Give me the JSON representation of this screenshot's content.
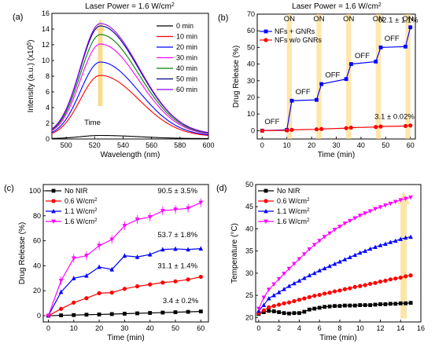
{
  "chart_data": [
    {
      "panel": "(a)",
      "type": "line",
      "title": "Laser Power = 1.6 W/cm²",
      "xlabel": "Wavelength (nm)",
      "ylabel": "Intensity (a.u.) (x10⁵)",
      "xlim": [
        490,
        600
      ],
      "ylim": [
        0,
        16
      ],
      "xticks": [
        500,
        520,
        540,
        560,
        580,
        600
      ],
      "yticks": [
        0,
        2,
        4,
        6,
        8,
        10,
        12,
        14,
        16
      ],
      "peak_x": 524,
      "series": [
        {
          "name": "0 min",
          "color": "#000000",
          "peak": 0.45,
          "floor": 0.05
        },
        {
          "name": "10 min",
          "color": "#ff0000",
          "peak": 8.1,
          "floor": 0.3
        },
        {
          "name": "20 min",
          "color": "#0000ff",
          "peak": 9.8,
          "floor": 0.35
        },
        {
          "name": "30 min",
          "color": "#ff00ff",
          "peak": 12.1,
          "floor": 0.45
        },
        {
          "name": "40 min",
          "color": "#008000",
          "peak": 13.3,
          "floor": 0.5
        },
        {
          "name": "50 min",
          "color": "#000080",
          "peak": 14.4,
          "floor": 0.55
        },
        {
          "name": "60 min",
          "color": "#8b00ff",
          "peak": 14.7,
          "floor": 0.55
        }
      ],
      "arrow_label": "Time"
    },
    {
      "panel": "(b)",
      "type": "line",
      "title": "Laser Power = 1.6 W/cm²",
      "xlabel": "Time (min)",
      "ylabel": "Drug Release (%)",
      "xlim": [
        -2,
        62
      ],
      "ylim": [
        -5,
        70
      ],
      "xticks": [
        0,
        10,
        20,
        30,
        40,
        50,
        60
      ],
      "yticks": [
        0,
        10,
        20,
        30,
        40,
        50,
        60,
        70
      ],
      "on_intervals": [
        [
          10,
          12
        ],
        [
          22,
          24
        ],
        [
          34,
          36
        ],
        [
          46,
          48
        ],
        [
          58,
          60
        ]
      ],
      "on_label": "ON",
      "off_label": "OFF",
      "off_positions": [
        {
          "x": 1,
          "y": 4
        },
        {
          "x": 13.5,
          "y": 22
        },
        {
          "x": 25.5,
          "y": 32
        },
        {
          "x": 37.5,
          "y": 43.5
        },
        {
          "x": 49.5,
          "y": 54
        }
      ],
      "series": [
        {
          "name": "NFs + GNRs",
          "color": "#0000ff",
          "x": [
            0,
            10,
            12,
            22,
            24,
            34,
            36,
            46,
            48,
            58,
            60
          ],
          "y": [
            0,
            0.5,
            18,
            18.5,
            28,
            31,
            40,
            41.5,
            50,
            50.5,
            62.1
          ]
        },
        {
          "name": "NFs w/o GNRs",
          "color": "#ff0000",
          "x": [
            0,
            10,
            12,
            22,
            24,
            34,
            36,
            46,
            48,
            58,
            60
          ],
          "y": [
            0,
            0.2,
            0.5,
            0.8,
            1.0,
            1.5,
            1.8,
            2.2,
            2.5,
            2.8,
            3.1
          ]
        }
      ],
      "annotations": [
        {
          "text": "62.1 ± 1.1%",
          "x": 47,
          "y": 65
        },
        {
          "text": "3.1 ± 0.02%",
          "x": 45.5,
          "y": 7
        }
      ]
    },
    {
      "panel": "(c)",
      "type": "line",
      "xlabel": "Time (min)",
      "ylabel": "Drug Release (%)",
      "xlim": [
        -2,
        63
      ],
      "ylim": [
        -5,
        105
      ],
      "xticks": [
        0,
        10,
        20,
        30,
        40,
        50,
        60
      ],
      "yticks": [
        0,
        20,
        40,
        60,
        80,
        100
      ],
      "x": [
        0,
        5,
        10,
        15,
        20,
        25,
        30,
        35,
        40,
        45,
        50,
        55,
        60
      ],
      "series": [
        {
          "name": "No NIR",
          "color": "#000000",
          "marker": "square",
          "y": [
            0,
            0.3,
            0.5,
            0.8,
            1.0,
            1.3,
            1.6,
            1.9,
            2.2,
            2.5,
            2.8,
            3.1,
            3.4
          ]
        },
        {
          "name": "0.6 W/cm²",
          "color": "#ff0000",
          "marker": "circle",
          "y": [
            0,
            5.5,
            10.5,
            14,
            18,
            18.5,
            21.5,
            23.5,
            25,
            26.5,
            27.5,
            29,
            31.1
          ]
        },
        {
          "name": "1.1 W/cm²",
          "color": "#0000ff",
          "marker": "triangle",
          "y": [
            0,
            19,
            30,
            32,
            39,
            37,
            48,
            47,
            49,
            53,
            53.5,
            53,
            53.7
          ]
        },
        {
          "name": "1.6 W/cm²",
          "color": "#ff00ff",
          "marker": "triangle-down",
          "y": [
            0,
            28,
            46,
            48,
            56,
            61,
            72,
            77,
            79,
            84,
            85,
            86,
            90.5
          ]
        }
      ],
      "annotations": [
        {
          "text": "90.5 ± 3.5%",
          "x": 43,
          "y": 98
        },
        {
          "text": "53.7 ± 1.8%",
          "x": 43,
          "y": 63
        },
        {
          "text": "31.1 ± 1.4%",
          "x": 43,
          "y": 38
        },
        {
          "text": "3.4 ± 0.2%",
          "x": 45,
          "y": 10
        }
      ]
    },
    {
      "panel": "(d)",
      "type": "line",
      "xlabel": "Time (min)",
      "ylabel": "Temperature (°C)",
      "xlim": [
        -0.3,
        16
      ],
      "ylim": [
        19,
        50
      ],
      "xticks": [
        0,
        2,
        4,
        6,
        8,
        10,
        12,
        14,
        16
      ],
      "yticks": [
        20,
        25,
        30,
        35,
        40,
        45,
        50
      ],
      "x": [
        0,
        0.5,
        1,
        1.5,
        2,
        2.5,
        3,
        3.5,
        4,
        4.5,
        5,
        5.5,
        6,
        6.5,
        7,
        7.5,
        8,
        8.5,
        9,
        9.5,
        10,
        10.5,
        11,
        11.5,
        12,
        12.5,
        13,
        13.5,
        14,
        14.5,
        15
      ],
      "series": [
        {
          "name": "No NIR",
          "color": "#000000",
          "marker": "square",
          "y": [
            20.8,
            21.2,
            21.5,
            21.4,
            21.2,
            21.0,
            20.9,
            21.0,
            21.0,
            21.3,
            21.8,
            22.0,
            22.2,
            22.4,
            22.5,
            22.6,
            22.6,
            22.7,
            22.7,
            22.7,
            22.8,
            22.8,
            22.8,
            22.9,
            23.0,
            23.0,
            23.1,
            23.1,
            23.2,
            23.2,
            23.3
          ]
        },
        {
          "name": "0.6 W/cm²",
          "color": "#ff0000",
          "marker": "circle",
          "y": [
            21.0,
            21.6,
            22.3,
            22.6,
            22.9,
            23.2,
            23.4,
            23.7,
            24.0,
            24.3,
            24.6,
            24.9,
            25.1,
            25.4,
            25.6,
            25.9,
            26.1,
            26.4,
            26.6,
            26.9,
            27.1,
            27.3,
            27.6,
            27.8,
            28.1,
            28.3,
            28.6,
            28.8,
            29.0,
            29.3,
            29.5
          ]
        },
        {
          "name": "1.1 W/cm²",
          "color": "#0000ff",
          "marker": "triangle",
          "y": [
            21.5,
            22.8,
            24.3,
            25.0,
            25.7,
            26.4,
            27.1,
            27.7,
            28.3,
            28.9,
            29.5,
            30.0,
            30.6,
            31.1,
            31.6,
            32.1,
            32.6,
            33.1,
            33.6,
            34.1,
            34.6,
            35.0,
            35.5,
            35.9,
            36.3,
            36.6,
            37.0,
            37.3,
            37.7,
            38.0,
            38.2
          ]
        },
        {
          "name": "1.6 W/cm²",
          "color": "#ff00ff",
          "marker": "triangle-down",
          "y": [
            22.0,
            24.5,
            26.3,
            27.5,
            28.7,
            29.9,
            31.0,
            32.1,
            33.2,
            34.3,
            35.4,
            36.4,
            37.3,
            38.2,
            39.0,
            39.8,
            40.5,
            41.2,
            41.8,
            42.4,
            43.0,
            43.5,
            44.0,
            44.5,
            44.9,
            45.3,
            45.7,
            46.1,
            46.5,
            46.8,
            47.1
          ]
        }
      ]
    }
  ]
}
